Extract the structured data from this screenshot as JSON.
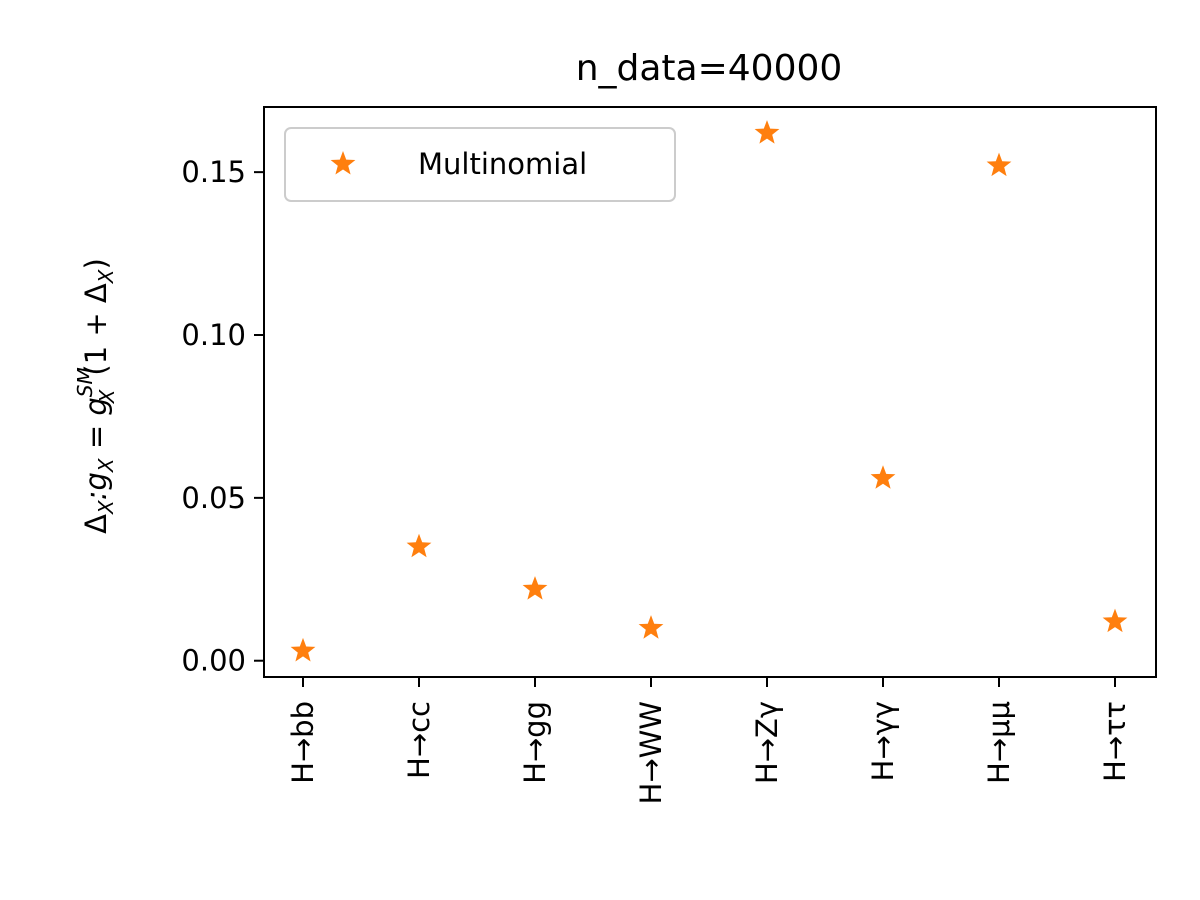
{
  "chart_data": {
    "type": "scatter",
    "title": "n_data=40000",
    "xlabel": "",
    "ylabel_parts": {
      "prefix": "Δ",
      "prefix_sub": "X",
      "colon": ":g",
      "g_sub": "X",
      "equals": " = g",
      "sm_sup": "SM",
      "sm_sub": "X",
      "suffix_open": "(1 + Δ",
      "suffix_sub": "X",
      "suffix_close": ")"
    },
    "categories": [
      "H→bb",
      "H→cc",
      "H→gg",
      "H→WW",
      "H→Zγ",
      "H→γγ",
      "H→μμ",
      "H→ττ"
    ],
    "series": [
      {
        "name": "Multinomial",
        "marker": "star",
        "color": "#ff7f0e",
        "values": [
          0.003,
          0.035,
          0.022,
          0.01,
          0.162,
          0.056,
          0.152,
          0.012
        ]
      }
    ],
    "ylim": [
      -0.005,
      0.17
    ],
    "yticks": [
      0.0,
      0.05,
      0.1,
      0.15
    ],
    "ytick_labels": [
      "0.00",
      "0.05",
      "0.10",
      "0.15"
    ],
    "grid": false,
    "legend_position": "top-left"
  }
}
